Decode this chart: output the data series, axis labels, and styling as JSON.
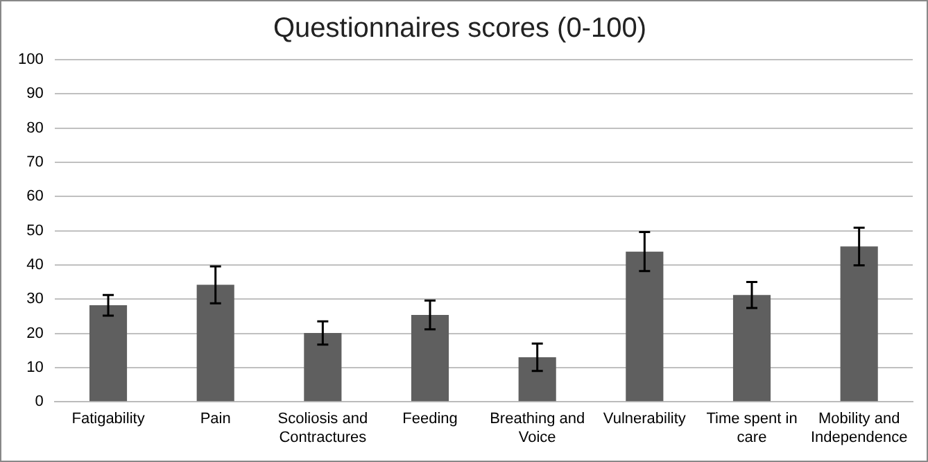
{
  "chart_data": {
    "type": "bar",
    "title": "Questionnaires scores (0-100)",
    "categories": [
      "Fatigability",
      "Pain",
      "Scoliosis and Contractures",
      "Feeding",
      "Breathing and Voice",
      "Vulnerability",
      "Time spent in care",
      "Mobility and Independence"
    ],
    "values": [
      28.2,
      34.2,
      20.1,
      25.4,
      13,
      43.9,
      31.2,
      45.4
    ],
    "errors": [
      3,
      5.4,
      3.4,
      4.2,
      4,
      5.7,
      3.8,
      5.5
    ],
    "color": "#5f5f5f",
    "ylim": [
      0,
      100
    ],
    "yticks": [
      0,
      10,
      20,
      30,
      40,
      50,
      60,
      70,
      80,
      90,
      100
    ],
    "grid": "y",
    "legend": false
  }
}
